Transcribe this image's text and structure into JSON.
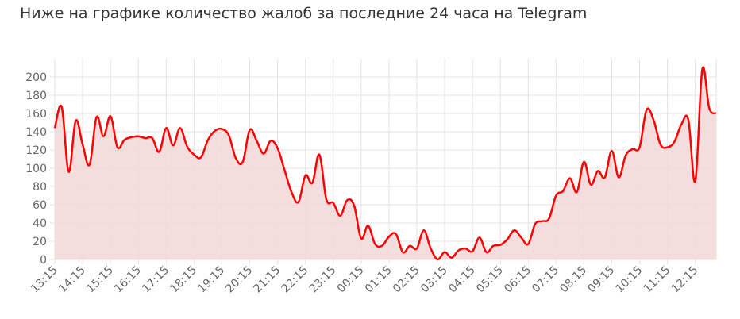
{
  "chart_data": {
    "type": "area",
    "title": "Ниже на графике количество жалоб за последние 24 часа на Telegram",
    "xlabel": "",
    "ylabel": "",
    "ylim": [
      0,
      220
    ],
    "yticks": [
      0,
      20,
      40,
      60,
      80,
      100,
      120,
      140,
      160,
      180,
      200
    ],
    "grid": true,
    "legend": "none",
    "line_color": "#ff0000",
    "fill_color": "#f3d9d9",
    "grid_color": "#e3e3e3",
    "x_labels": [
      "13:15",
      "14:15",
      "15:15",
      "16:15",
      "17:15",
      "18:15",
      "19:15",
      "20:15",
      "21:15",
      "22:15",
      "23:15",
      "00:15",
      "01:15",
      "02:15",
      "03:15",
      "04:15",
      "05:15",
      "06:15",
      "07:15",
      "08:15",
      "09:15",
      "10:15",
      "11:15",
      "12:15"
    ],
    "points_per_label": 4,
    "values": [
      144,
      167,
      96,
      152,
      126,
      104,
      156,
      135,
      157,
      123,
      131,
      134,
      135,
      133,
      133,
      118,
      144,
      125,
      144,
      124,
      115,
      112,
      131,
      141,
      143,
      136,
      111,
      107,
      142,
      130,
      116,
      130,
      122,
      98,
      74,
      63,
      92,
      84,
      115,
      66,
      62,
      48,
      65,
      59,
      23,
      37,
      17,
      15,
      25,
      28,
      8,
      15,
      12,
      32,
      12,
      0,
      8,
      2,
      10,
      12,
      9,
      24,
      8,
      15,
      16,
      22,
      32,
      24,
      17,
      39,
      42,
      45,
      70,
      75,
      89,
      74,
      107,
      82,
      97,
      90,
      119,
      90,
      114,
      121,
      123,
      164,
      153,
      126,
      123,
      129,
      148,
      153,
      86,
      208,
      166,
      160
    ]
  }
}
